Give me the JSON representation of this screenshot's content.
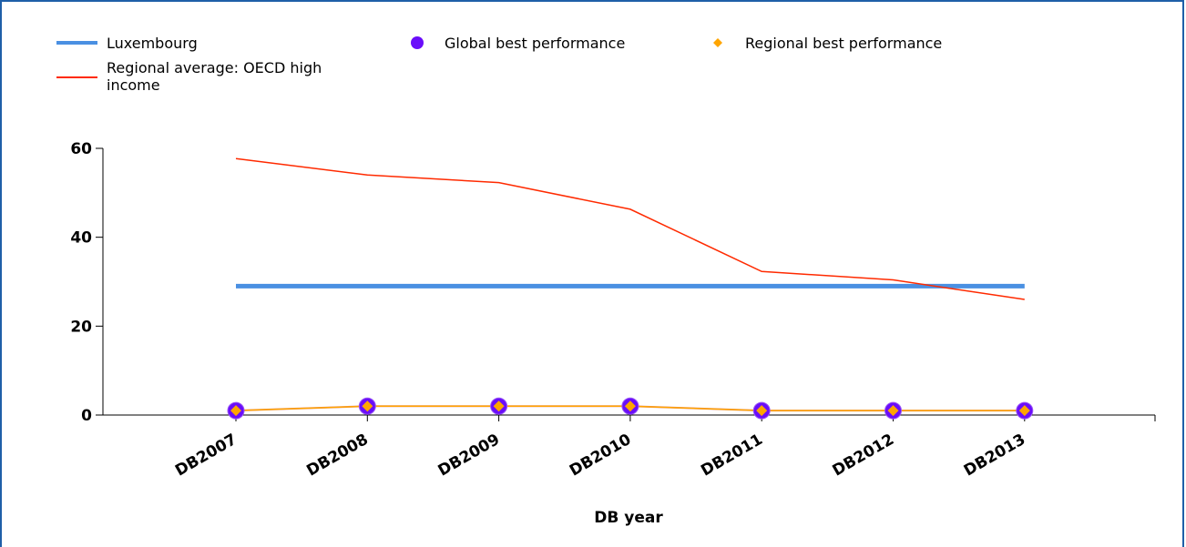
{
  "chart_data": {
    "type": "line",
    "xlabel": "DB year",
    "ylabel": "",
    "ylim": [
      0,
      60
    ],
    "yticks": [
      0,
      20,
      40,
      60
    ],
    "categories": [
      "DB2007",
      "DB2008",
      "DB2009",
      "DB2010",
      "DB2011",
      "DB2012",
      "DB2013"
    ],
    "series": [
      {
        "name": "Luxembourg",
        "values": [
          29,
          29,
          29,
          29,
          29,
          29,
          29
        ],
        "color": "#4a90e2",
        "style": "line"
      },
      {
        "name": "Regional average: OECD high income",
        "values": [
          57.7,
          54,
          52.3,
          46.3,
          32.3,
          30.4,
          26
        ],
        "color": "#ff2a00",
        "style": "line"
      },
      {
        "name": "Global best performance",
        "values": [
          1,
          2,
          2,
          2,
          1,
          1,
          1
        ],
        "color": "#6a0dfa",
        "style": "marker-circle"
      },
      {
        "name": "Regional best performance",
        "values": [
          1,
          2,
          2,
          2,
          1,
          1,
          1
        ],
        "color": "#ffa500",
        "style": "marker-diamond"
      }
    ],
    "legend": {
      "placement": "top",
      "entries": [
        {
          "label": "Luxembourg",
          "label_lines": [
            "Luxembourg"
          ]
        },
        {
          "label": "Regional average: OECD high income",
          "label_lines": [
            "Regional average: OECD high",
            "income"
          ]
        },
        {
          "label": "Global best performance",
          "label_lines": [
            "Global best performance"
          ]
        },
        {
          "label": "Regional best performance",
          "label_lines": [
            "Regional best performance"
          ]
        }
      ]
    },
    "grid": false
  }
}
